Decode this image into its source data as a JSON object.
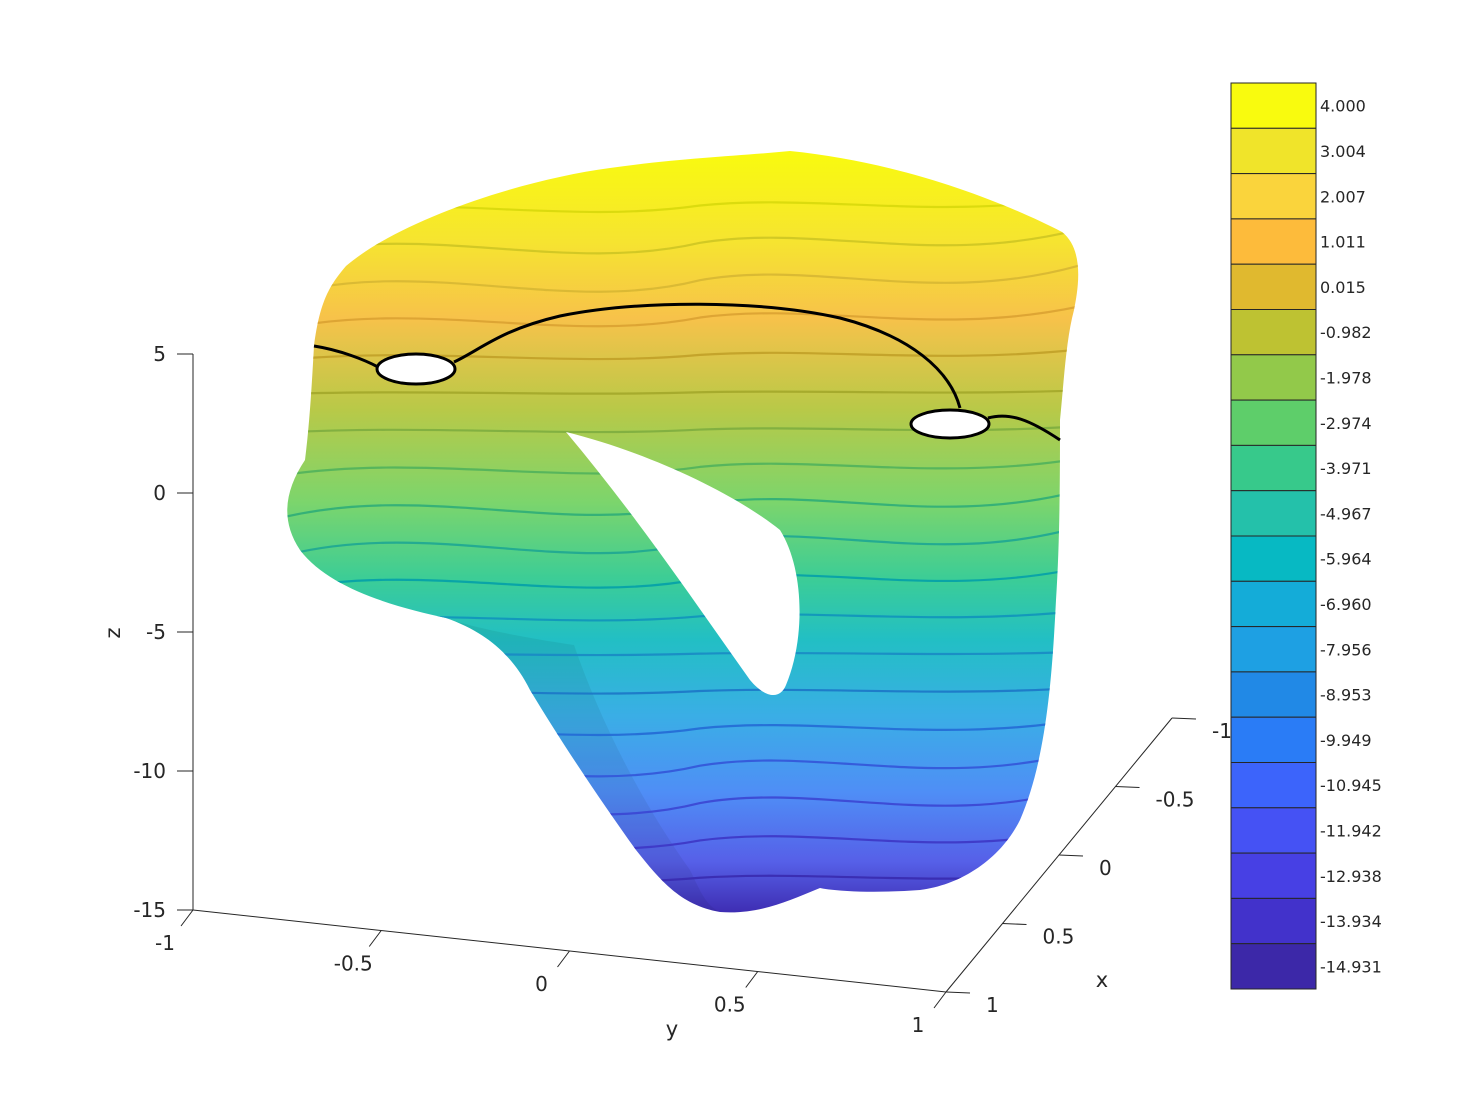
{
  "chart_data": {
    "type": "surface3d",
    "title": "",
    "xlabel": "x",
    "ylabel": "y",
    "zlabel": "z",
    "xlim": [
      -1,
      1
    ],
    "ylim": [
      -1,
      1
    ],
    "zlim": [
      -15,
      5
    ],
    "x_ticks": [
      "1",
      "0.5",
      "0",
      "-0.5",
      "-1"
    ],
    "y_ticks": [
      "-1",
      "-0.5",
      "0",
      "0.5",
      "1"
    ],
    "z_ticks": [
      "5",
      "0",
      "-5",
      "-10",
      "-15"
    ],
    "grid": false,
    "colormap": "parula",
    "contour_levels": [
      4.0,
      3.004,
      2.007,
      1.011,
      0.015,
      -0.982,
      -1.978,
      -2.974,
      -3.971,
      -4.967,
      -5.964,
      -6.96,
      -7.956,
      -8.953,
      -9.949,
      -10.945,
      -11.942,
      -12.938,
      -13.934,
      -14.931
    ],
    "colorbar": {
      "location": "right",
      "labels": [
        "4.000",
        "3.004",
        "2.007",
        "1.011",
        "0.015",
        "-0.982",
        "-1.978",
        "-2.974",
        "-3.971",
        "-4.967",
        "-5.964",
        "-6.960",
        "-7.956",
        "-8.953",
        "-9.949",
        "-10.945",
        "-11.942",
        "-12.938",
        "-13.934",
        "-14.931"
      ],
      "colors": [
        "#f9fb0e",
        "#f0e42a",
        "#fad43c",
        "#fdbb3b",
        "#e0b92f",
        "#bec232",
        "#92c94a",
        "#5ece6a",
        "#37c98b",
        "#24c1aa",
        "#07b9c3",
        "#14acd8",
        "#1ea0e3",
        "#2189e6",
        "#2a7cf6",
        "#3c64fb",
        "#4552f4",
        "#4740e4",
        "#4232cb",
        "#3c28a8"
      ]
    },
    "highlighted_contour_level": 0.015,
    "holes": 3
  }
}
